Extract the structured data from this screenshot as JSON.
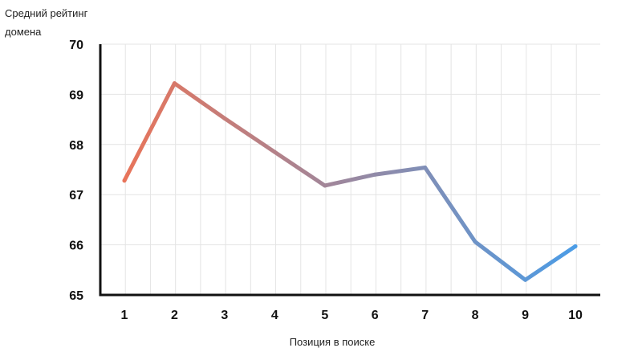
{
  "chart_data": {
    "type": "line",
    "ylabel": [
      "Средний рейтинг",
      "домена"
    ],
    "xlabel": "Позиция в поиске",
    "x": [
      1,
      2,
      3,
      4,
      5,
      6,
      7,
      8,
      9,
      10
    ],
    "x_tick_labels": [
      "1",
      "2",
      "3",
      "4",
      "5",
      "6",
      "7",
      "8",
      "9",
      "10"
    ],
    "series": [
      {
        "values": [
          67.28,
          69.22,
          68.52,
          67.85,
          67.18,
          67.4,
          67.54,
          66.06,
          65.3,
          65.97
        ]
      }
    ],
    "ylim": [
      65,
      70
    ],
    "y_ticks": [
      65,
      66,
      67,
      68,
      69,
      70
    ],
    "y_tick_labels": [
      "65",
      "66",
      "67",
      "68",
      "69",
      "70"
    ],
    "grid": true,
    "line_gradient": [
      "#e8745a",
      "#4b9ce6"
    ]
  }
}
